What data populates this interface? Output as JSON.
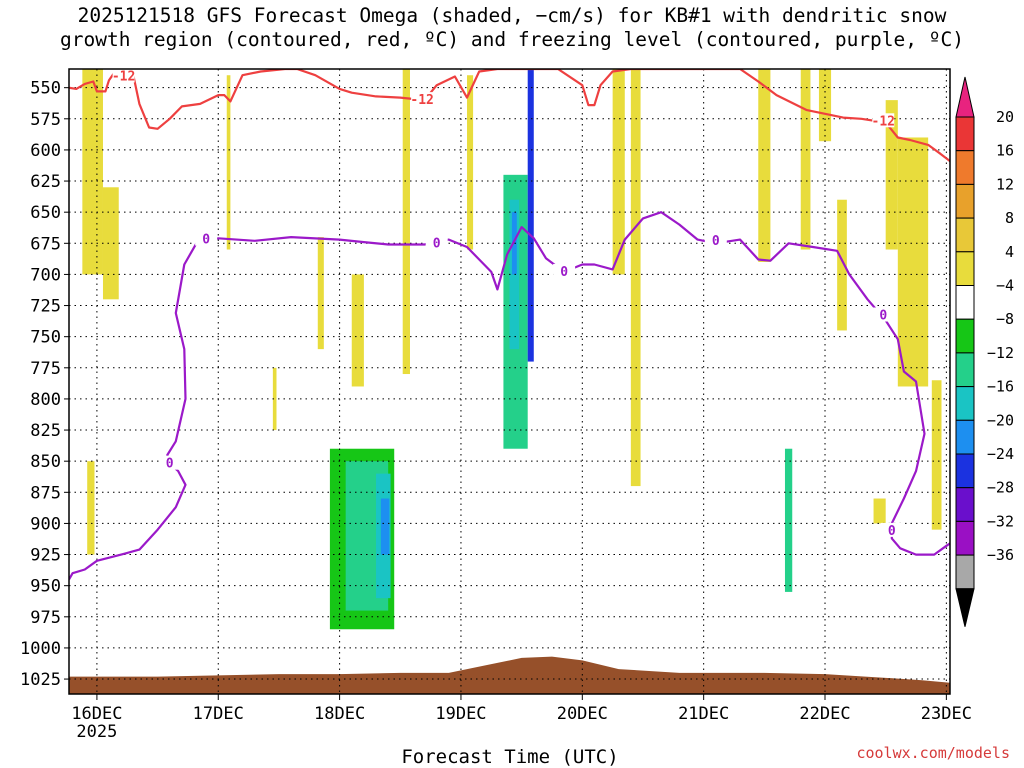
{
  "title": {
    "line1": "2025121518 GFS Forecast Omega (shaded, −cm/s) for KB#1 with dendritic snow",
    "line2": "growth region (contoured, red, ºC) and freezing level (contoured, purple, ºC)"
  },
  "credit": "coolwx.com/models",
  "chart_data": {
    "type": "heatmap",
    "xlabel": "Forecast Time (UTC)",
    "ylabel": "",
    "x_tick_labels": [
      "16DEC",
      "17DEC",
      "18DEC",
      "19DEC",
      "20DEC",
      "21DEC",
      "22DEC",
      "23DEC"
    ],
    "x_sub_label": "2025",
    "x_tick_days": [
      16,
      17,
      18,
      19,
      20,
      21,
      22,
      23
    ],
    "xlim": [
      15.77,
      23.03
    ],
    "y_ticks": [
      550,
      575,
      600,
      625,
      650,
      675,
      700,
      725,
      750,
      775,
      800,
      825,
      850,
      875,
      900,
      925,
      950,
      975,
      1000,
      1025
    ],
    "ylim": [
      1037,
      535
    ],
    "y_inverted": true,
    "grid": true,
    "colorbar": {
      "labels": [
        "20",
        "16",
        "12",
        "8",
        "4",
        "−4",
        "−8",
        "−12",
        "−16",
        "−20",
        "−24",
        "−28",
        "−32",
        "−36"
      ],
      "colors": [
        "#ea3636",
        "#ef7a2c",
        "#e8a12b",
        "#e8c838",
        "#e8dc3c",
        "#ffffff",
        "#16c616",
        "#24d08a",
        "#1ac4c4",
        "#1d8ff0",
        "#1b32e0",
        "#6a0fcc",
        "#9a10c4",
        "#a8a8a8"
      ],
      "max_color": "#e8237f",
      "min_color": "#000000"
    },
    "dgz_contour": {
      "label": "-12",
      "color": "#ee4040",
      "points": [
        [
          15.77,
          550
        ],
        [
          15.83,
          551
        ],
        [
          15.9,
          547
        ],
        [
          15.97,
          545
        ],
        [
          16.0,
          553
        ],
        [
          16.07,
          553
        ],
        [
          16.1,
          544
        ],
        [
          16.15,
          537
        ],
        [
          16.3,
          540
        ],
        [
          16.35,
          563
        ],
        [
          16.43,
          582
        ],
        [
          16.5,
          583
        ],
        [
          16.6,
          575
        ],
        [
          16.7,
          565
        ],
        [
          16.85,
          563
        ],
        [
          17.0,
          556
        ],
        [
          17.05,
          556
        ],
        [
          17.1,
          561
        ],
        [
          17.2,
          540
        ],
        [
          17.35,
          537
        ],
        [
          17.55,
          535
        ],
        [
          17.65,
          535
        ],
        [
          17.8,
          540
        ],
        [
          18.0,
          551
        ],
        [
          18.1,
          554
        ],
        [
          18.3,
          557
        ],
        [
          18.5,
          558
        ],
        [
          18.7,
          560
        ],
        [
          18.8,
          548
        ],
        [
          18.95,
          541
        ],
        [
          19.05,
          558
        ],
        [
          19.15,
          537
        ],
        [
          19.3,
          535
        ],
        [
          19.45,
          535
        ],
        [
          19.6,
          535
        ],
        [
          19.8,
          535
        ],
        [
          20.0,
          548
        ],
        [
          20.05,
          564
        ],
        [
          20.1,
          564
        ],
        [
          20.15,
          548
        ],
        [
          20.25,
          537
        ],
        [
          20.4,
          535
        ],
        [
          21.3,
          535
        ],
        [
          21.45,
          545
        ],
        [
          21.6,
          556
        ],
        [
          21.85,
          568
        ],
        [
          22.15,
          574
        ],
        [
          22.3,
          575
        ],
        [
          22.5,
          578
        ],
        [
          22.6,
          590
        ],
        [
          22.7,
          592
        ],
        [
          22.85,
          596
        ],
        [
          22.95,
          603
        ],
        [
          23.03,
          609
        ]
      ]
    },
    "freezing_contour": {
      "label": "0",
      "color": "#9b19c9",
      "points": [
        [
          15.77,
          945
        ],
        [
          15.8,
          940
        ],
        [
          15.9,
          937
        ],
        [
          16.0,
          930
        ],
        [
          16.2,
          925
        ],
        [
          16.35,
          921
        ],
        [
          16.5,
          905
        ],
        [
          16.65,
          887
        ],
        [
          16.73,
          869
        ],
        [
          16.67,
          858
        ],
        [
          16.6,
          852
        ],
        [
          16.58,
          845
        ],
        [
          16.65,
          834
        ],
        [
          16.73,
          800
        ],
        [
          16.72,
          760
        ],
        [
          16.65,
          731
        ],
        [
          16.72,
          692
        ],
        [
          16.82,
          675
        ],
        [
          17.0,
          671
        ],
        [
          17.3,
          673
        ],
        [
          17.6,
          670
        ],
        [
          18.0,
          672
        ],
        [
          18.2,
          674
        ],
        [
          18.4,
          676
        ],
        [
          18.7,
          676
        ],
        [
          18.9,
          672
        ],
        [
          19.05,
          678
        ],
        [
          19.15,
          688
        ],
        [
          19.25,
          698
        ],
        [
          19.3,
          712
        ],
        [
          19.38,
          684
        ],
        [
          19.5,
          662
        ],
        [
          19.6,
          671
        ],
        [
          19.7,
          687
        ],
        [
          19.85,
          698
        ],
        [
          20.0,
          692
        ],
        [
          20.1,
          692
        ],
        [
          20.25,
          696
        ],
        [
          20.35,
          672
        ],
        [
          20.5,
          655
        ],
        [
          20.65,
          650
        ],
        [
          20.8,
          660
        ],
        [
          20.95,
          672
        ],
        [
          21.1,
          675
        ],
        [
          21.3,
          672
        ],
        [
          21.45,
          688
        ],
        [
          21.55,
          689
        ],
        [
          21.7,
          675
        ],
        [
          21.9,
          678
        ],
        [
          22.1,
          681
        ],
        [
          22.2,
          700
        ],
        [
          22.35,
          720
        ],
        [
          22.5,
          737
        ],
        [
          22.6,
          752
        ],
        [
          22.65,
          778
        ],
        [
          22.75,
          786
        ],
        [
          22.82,
          828
        ],
        [
          22.75,
          858
        ],
        [
          22.65,
          880
        ],
        [
          22.55,
          900
        ],
        [
          22.55,
          912
        ],
        [
          22.62,
          920
        ],
        [
          22.75,
          925
        ],
        [
          22.9,
          925
        ],
        [
          23.0,
          918
        ],
        [
          23.03,
          916
        ]
      ]
    },
    "omega_cells": [
      {
        "x0": 15.88,
        "x1": 16.05,
        "p0": 535,
        "p1": 700,
        "value": 4
      },
      {
        "x0": 16.05,
        "x1": 16.18,
        "p0": 630,
        "p1": 720,
        "value": 4
      },
      {
        "x0": 15.92,
        "x1": 15.98,
        "p0": 850,
        "p1": 925,
        "value": 4
      },
      {
        "x0": 17.07,
        "x1": 17.1,
        "p0": 540,
        "p1": 680,
        "value": 4
      },
      {
        "x0": 17.82,
        "x1": 17.87,
        "p0": 670,
        "p1": 760,
        "value": 4
      },
      {
        "x0": 17.45,
        "x1": 17.48,
        "p0": 775,
        "p1": 825,
        "value": 4
      },
      {
        "x0": 18.1,
        "x1": 18.2,
        "p0": 700,
        "p1": 790,
        "value": 4
      },
      {
        "x0": 18.52,
        "x1": 18.58,
        "p0": 535,
        "p1": 780,
        "value": 4
      },
      {
        "x0": 19.05,
        "x1": 19.1,
        "p0": 540,
        "p1": 680,
        "value": 4
      },
      {
        "x0": 20.25,
        "x1": 20.35,
        "p0": 535,
        "p1": 700,
        "value": 4
      },
      {
        "x0": 20.4,
        "x1": 20.48,
        "p0": 535,
        "p1": 870,
        "value": 4
      },
      {
        "x0": 21.45,
        "x1": 21.55,
        "p0": 535,
        "p1": 690,
        "value": 4
      },
      {
        "x0": 21.8,
        "x1": 21.88,
        "p0": 535,
        "p1": 680,
        "value": 4
      },
      {
        "x0": 21.95,
        "x1": 22.05,
        "p0": 535,
        "p1": 593,
        "value": 4
      },
      {
        "x0": 22.1,
        "x1": 22.18,
        "p0": 640,
        "p1": 745,
        "value": 4
      },
      {
        "x0": 22.6,
        "x1": 22.85,
        "p0": 590,
        "p1": 790,
        "value": 4
      },
      {
        "x0": 22.5,
        "x1": 22.6,
        "p0": 560,
        "p1": 680,
        "value": 4
      },
      {
        "x0": 22.88,
        "x1": 22.96,
        "p0": 785,
        "p1": 905,
        "value": 4
      },
      {
        "x0": 22.4,
        "x1": 22.5,
        "p0": 880,
        "p1": 900,
        "value": 4
      },
      {
        "x0": 17.72,
        "x1": 17.8,
        "p0": 680,
        "p1": 755,
        "value": -4
      },
      {
        "x0": 18.12,
        "x1": 18.2,
        "p0": 535,
        "p1": 600,
        "value": -4
      },
      {
        "x0": 18.58,
        "x1": 18.62,
        "p0": 630,
        "p1": 800,
        "value": -4
      },
      {
        "x0": 18.85,
        "x1": 18.95,
        "p0": 540,
        "p1": 690,
        "value": -4
      },
      {
        "x0": 19.22,
        "x1": 19.6,
        "p0": 535,
        "p1": 975,
        "value": -4
      },
      {
        "x0": 19.65,
        "x1": 19.85,
        "p0": 535,
        "p1": 960,
        "value": -4
      },
      {
        "x0": 20.0,
        "x1": 20.06,
        "p0": 700,
        "p1": 920,
        "value": -4
      },
      {
        "x0": 21.65,
        "x1": 21.75,
        "p0": 600,
        "p1": 690,
        "value": -4
      },
      {
        "x0": 21.65,
        "x1": 21.75,
        "p0": 808,
        "p1": 975,
        "value": -4
      },
      {
        "x0": 17.85,
        "x1": 18.5,
        "p0": 820,
        "p1": 1000,
        "value": -4
      },
      {
        "x0": 17.92,
        "x1": 18.45,
        "p0": 840,
        "p1": 985,
        "value": -8
      },
      {
        "x0": 18.05,
        "x1": 18.4,
        "p0": 850,
        "p1": 970,
        "value": -12
      },
      {
        "x0": 19.35,
        "x1": 19.55,
        "p0": 620,
        "p1": 840,
        "value": -12
      },
      {
        "x0": 21.67,
        "x1": 21.73,
        "p0": 840,
        "p1": 955,
        "value": -12
      },
      {
        "x0": 18.3,
        "x1": 18.42,
        "p0": 860,
        "p1": 960,
        "value": -16
      },
      {
        "x0": 19.4,
        "x1": 19.48,
        "p0": 640,
        "p1": 760,
        "value": -16
      },
      {
        "x0": 18.34,
        "x1": 18.41,
        "p0": 880,
        "p1": 925,
        "value": -20
      },
      {
        "x0": 19.42,
        "x1": 19.46,
        "p0": 650,
        "p1": 700,
        "value": -20
      },
      {
        "x0": 19.55,
        "x1": 19.6,
        "p0": 535,
        "p1": 770,
        "value": -24
      }
    ],
    "surface": {
      "color": "#96502a",
      "points": [
        [
          15.77,
          1023
        ],
        [
          16.5,
          1023
        ],
        [
          17.0,
          1022
        ],
        [
          17.5,
          1021
        ],
        [
          18.0,
          1021
        ],
        [
          18.5,
          1020
        ],
        [
          18.9,
          1020
        ],
        [
          19.2,
          1014
        ],
        [
          19.5,
          1008
        ],
        [
          19.75,
          1007
        ],
        [
          20.0,
          1010
        ],
        [
          20.3,
          1017
        ],
        [
          20.8,
          1020
        ],
        [
          21.5,
          1020
        ],
        [
          22.0,
          1021
        ],
        [
          22.5,
          1024
        ],
        [
          22.8,
          1026
        ],
        [
          23.03,
          1028
        ]
      ]
    }
  }
}
